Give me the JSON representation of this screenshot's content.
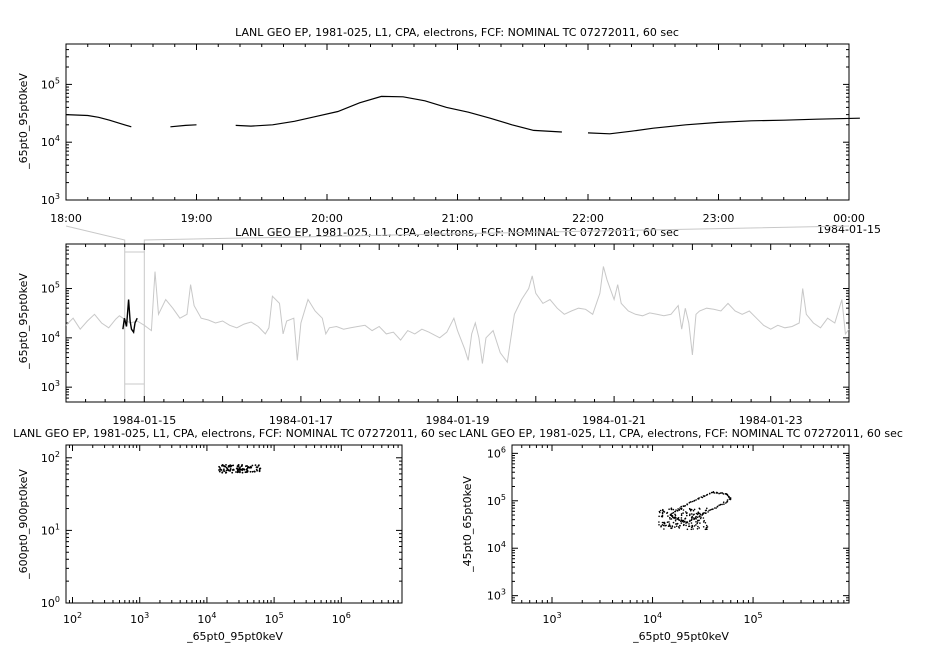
{
  "chart_data": [
    {
      "panel": "top",
      "type": "line",
      "title": "LANL GEO EP, 1981-025, L1, CPA, electrons, FCF: NOMINAL TC 07272011, 60 sec",
      "ylabel": "_65pt0_95pt0keV",
      "yscale": "log",
      "ylim": [
        1000,
        500000
      ],
      "ytick_labels": [
        "10^3",
        "10^4",
        "10^5"
      ],
      "xlim": [
        "1984-01-14 18:00",
        "1984-01-15 00:00"
      ],
      "xtick_labels": [
        "18:00",
        "19:00",
        "20:00",
        "21:00",
        "22:00",
        "23:00",
        "00:00"
      ],
      "xtick_date_label": "1984-01-15",
      "series": [
        {
          "color": "#000000",
          "segments": [
            [
              [
                "18:00",
                30000
              ],
              [
                "18:10",
                29000
              ],
              [
                "18:15",
                27000
              ],
              [
                "18:20",
                24000
              ],
              [
                "18:25",
                21000
              ],
              [
                "18:30",
                18500
              ]
            ],
            [
              [
                "18:48",
                18500
              ],
              [
                "18:55",
                19500
              ],
              [
                "19:00",
                20000
              ]
            ],
            [
              [
                "19:18",
                19500
              ],
              [
                "19:25",
                19000
              ],
              [
                "19:35",
                20000
              ],
              [
                "19:45",
                23000
              ],
              [
                "19:55",
                28000
              ],
              [
                "20:05",
                34000
              ],
              [
                "20:15",
                48000
              ],
              [
                "20:25",
                62000
              ],
              [
                "20:35",
                61000
              ],
              [
                "20:45",
                52000
              ],
              [
                "20:55",
                40000
              ],
              [
                "21:05",
                33000
              ],
              [
                "21:15",
                26000
              ],
              [
                "21:25",
                20000
              ],
              [
                "21:35",
                16000
              ],
              [
                "21:48",
                15000
              ]
            ],
            [
              [
                "22:00",
                14500
              ],
              [
                "22:10",
                14000
              ],
              [
                "22:20",
                15500
              ],
              [
                "22:30",
                17500
              ],
              [
                "22:45",
                20000
              ],
              [
                "23:00",
                22000
              ],
              [
                "23:15",
                23500
              ],
              [
                "23:30",
                24000
              ],
              [
                "23:45",
                25000
              ],
              [
                "24:05",
                26000
              ]
            ]
          ]
        }
      ]
    },
    {
      "panel": "middle",
      "type": "line",
      "title": "LANL GEO EP, 1981-025, L1, CPA, electrons, FCF: NOMINAL TC 07272011, 60 sec",
      "ylabel": "_65pt0_95pt0keV",
      "yscale": "log",
      "ylim": [
        500,
        800000
      ],
      "ytick_labels": [
        "10^3",
        "10^4",
        "10^5"
      ],
      "xlim": [
        "1984-01-14",
        "1984-01-24"
      ],
      "xtick_labels": [
        "1984-01-15",
        "1984-01-17",
        "1984-01-19",
        "1984-01-21",
        "1984-01-23"
      ],
      "highlight_range": [
        "1984-01-14 18:00",
        "1984-01-15 00:00"
      ],
      "series": [
        {
          "color": "#c8c8c8",
          "points": [
            [
              0.0,
              18000
            ],
            [
              0.1,
              25000
            ],
            [
              0.2,
              15000
            ],
            [
              0.3,
              22000
            ],
            [
              0.4,
              30000
            ],
            [
              0.5,
              20000
            ],
            [
              0.6,
              16000
            ],
            [
              0.7,
              24000
            ],
            [
              0.75,
              28000
            ],
            [
              0.9,
              20000
            ],
            [
              1.0,
              22000
            ],
            [
              1.1,
              18000
            ],
            [
              1.2,
              14000
            ],
            [
              1.25,
              220000
            ],
            [
              1.3,
              30000
            ],
            [
              1.4,
              60000
            ],
            [
              1.5,
              40000
            ],
            [
              1.6,
              25000
            ],
            [
              1.7,
              30000
            ],
            [
              1.75,
              120000
            ],
            [
              1.8,
              45000
            ],
            [
              1.9,
              25000
            ],
            [
              2.0,
              23000
            ],
            [
              2.1,
              20000
            ],
            [
              2.2,
              22000
            ],
            [
              2.3,
              18000
            ],
            [
              2.4,
              16000
            ],
            [
              2.5,
              19000
            ],
            [
              2.6,
              21000
            ],
            [
              2.7,
              17000
            ],
            [
              2.8,
              12000
            ],
            [
              2.85,
              16000
            ],
            [
              2.9,
              70000
            ],
            [
              3.0,
              50000
            ],
            [
              3.05,
              12000
            ],
            [
              3.1,
              22000
            ],
            [
              3.2,
              25000
            ],
            [
              3.25,
              3500
            ],
            [
              3.3,
              20000
            ],
            [
              3.4,
              60000
            ],
            [
              3.5,
              35000
            ],
            [
              3.6,
              25000
            ],
            [
              3.65,
              12000
            ],
            [
              3.7,
              16000
            ],
            [
              3.8,
              17000
            ],
            [
              3.9,
              15000
            ],
            [
              4.0,
              16000
            ],
            [
              4.1,
              17000
            ],
            [
              4.2,
              18000
            ],
            [
              4.3,
              14000
            ],
            [
              4.4,
              17000
            ],
            [
              4.5,
              12000
            ],
            [
              4.6,
              13000
            ],
            [
              4.7,
              9000
            ],
            [
              4.8,
              14000
            ],
            [
              4.9,
              12000
            ],
            [
              5.0,
              15000
            ],
            [
              5.1,
              13000
            ],
            [
              5.25,
              10000
            ],
            [
              5.35,
              13000
            ],
            [
              5.45,
              25000
            ],
            [
              5.5,
              14000
            ],
            [
              5.6,
              6000
            ],
            [
              5.65,
              3500
            ],
            [
              5.7,
              12000
            ],
            [
              5.75,
              20000
            ],
            [
              5.8,
              10000
            ],
            [
              5.85,
              3000
            ],
            [
              5.9,
              10000
            ],
            [
              6.0,
              14000
            ],
            [
              6.1,
              5000
            ],
            [
              6.2,
              3200
            ],
            [
              6.3,
              30000
            ],
            [
              6.4,
              60000
            ],
            [
              6.5,
              100000
            ],
            [
              6.55,
              180000
            ],
            [
              6.6,
              80000
            ],
            [
              6.7,
              50000
            ],
            [
              6.8,
              60000
            ],
            [
              6.9,
              40000
            ],
            [
              7.0,
              30000
            ],
            [
              7.1,
              35000
            ],
            [
              7.2,
              40000
            ],
            [
              7.3,
              38000
            ],
            [
              7.4,
              30000
            ],
            [
              7.5,
              80000
            ],
            [
              7.55,
              280000
            ],
            [
              7.6,
              150000
            ],
            [
              7.7,
              60000
            ],
            [
              7.75,
              120000
            ],
            [
              7.8,
              50000
            ],
            [
              7.9,
              35000
            ],
            [
              8.0,
              30000
            ],
            [
              8.1,
              28000
            ],
            [
              8.2,
              32000
            ],
            [
              8.3,
              30000
            ],
            [
              8.4,
              28000
            ],
            [
              8.5,
              30000
            ],
            [
              8.6,
              45000
            ],
            [
              8.65,
              15000
            ],
            [
              8.7,
              40000
            ],
            [
              8.75,
              20000
            ],
            [
              8.8,
              4500
            ],
            [
              8.85,
              30000
            ],
            [
              8.9,
              35000
            ],
            [
              9.0,
              40000
            ],
            [
              9.1,
              38000
            ],
            [
              9.2,
              35000
            ],
            [
              9.3,
              50000
            ],
            [
              9.4,
              35000
            ],
            [
              9.5,
              30000
            ],
            [
              9.6,
              35000
            ],
            [
              9.7,
              25000
            ],
            [
              9.8,
              18000
            ],
            [
              9.9,
              15000
            ],
            [
              10.0,
              18000
            ],
            [
              10.1,
              16000
            ],
            [
              10.2,
              17000
            ],
            [
              10.3,
              20000
            ],
            [
              10.35,
              100000
            ],
            [
              10.4,
              30000
            ],
            [
              10.5,
              20000
            ],
            [
              10.6,
              16000
            ],
            [
              10.7,
              25000
            ],
            [
              10.8,
              20000
            ],
            [
              10.9,
              60000
            ],
            [
              10.95,
              12000
            ],
            [
              11.0,
              15000
            ]
          ]
        },
        {
          "color": "#000000",
          "points": [
            [
              0.8,
              15000
            ],
            [
              0.82,
              25000
            ],
            [
              0.85,
              17000
            ],
            [
              0.88,
              60000
            ],
            [
              0.9,
              22000
            ],
            [
              0.92,
              15000
            ],
            [
              0.95,
              13000
            ],
            [
              0.97,
              20000
            ],
            [
              1.0,
              25000
            ]
          ]
        }
      ]
    },
    {
      "panel": "bottom-left",
      "type": "scatter",
      "title": "LANL GEO EP, 1981-025, L1, CPA, electrons, FCF: NOMINAL TC 07272011, 60 sec",
      "xlabel": "_65pt0_95pt0keV",
      "ylabel": "_600pt0_900pt0keV",
      "xscale": "log",
      "yscale": "log",
      "xlim": [
        80,
        8000000
      ],
      "ylim": [
        1,
        150
      ],
      "xtick_labels": [
        "10^2",
        "10^3",
        "10^4",
        "10^5",
        "10^6"
      ],
      "ytick_labels": [
        "10^0",
        "10^1",
        "10^2"
      ],
      "series": [
        {
          "color": "#000000",
          "x_range": [
            15000,
            65000
          ],
          "y_range": [
            62,
            80
          ],
          "n_points": 110
        }
      ]
    },
    {
      "panel": "bottom-right",
      "type": "scatter",
      "title": "LANL GEO EP, 1981-025, L1, CPA, electrons, FCF: NOMINAL TC 07272011, 60 sec",
      "xlabel": "_65pt0_95pt0keV",
      "ylabel": "_45pt0_65pt0keV",
      "xscale": "log",
      "yscale": "log",
      "xlim": [
        400,
        900000
      ],
      "ylim": [
        700,
        1500000
      ],
      "xtick_labels": [
        "10^3",
        "10^4",
        "10^5"
      ],
      "ytick_labels": [
        "10^3",
        "10^4",
        "10^5",
        "10^6"
      ],
      "series": [
        {
          "color": "#000000",
          "loop": [
            [
              15000,
              50000
            ],
            [
              18000,
              40000
            ],
            [
              22000,
              35000
            ],
            [
              30000,
              50000
            ],
            [
              45000,
              75000
            ],
            [
              60000,
              110000
            ],
            [
              55000,
              140000
            ],
            [
              40000,
              150000
            ],
            [
              28000,
              110000
            ],
            [
              20000,
              75000
            ],
            [
              15000,
              50000
            ]
          ],
          "cluster_center": [
            20000,
            30000
          ],
          "n_points": 160
        }
      ]
    }
  ]
}
